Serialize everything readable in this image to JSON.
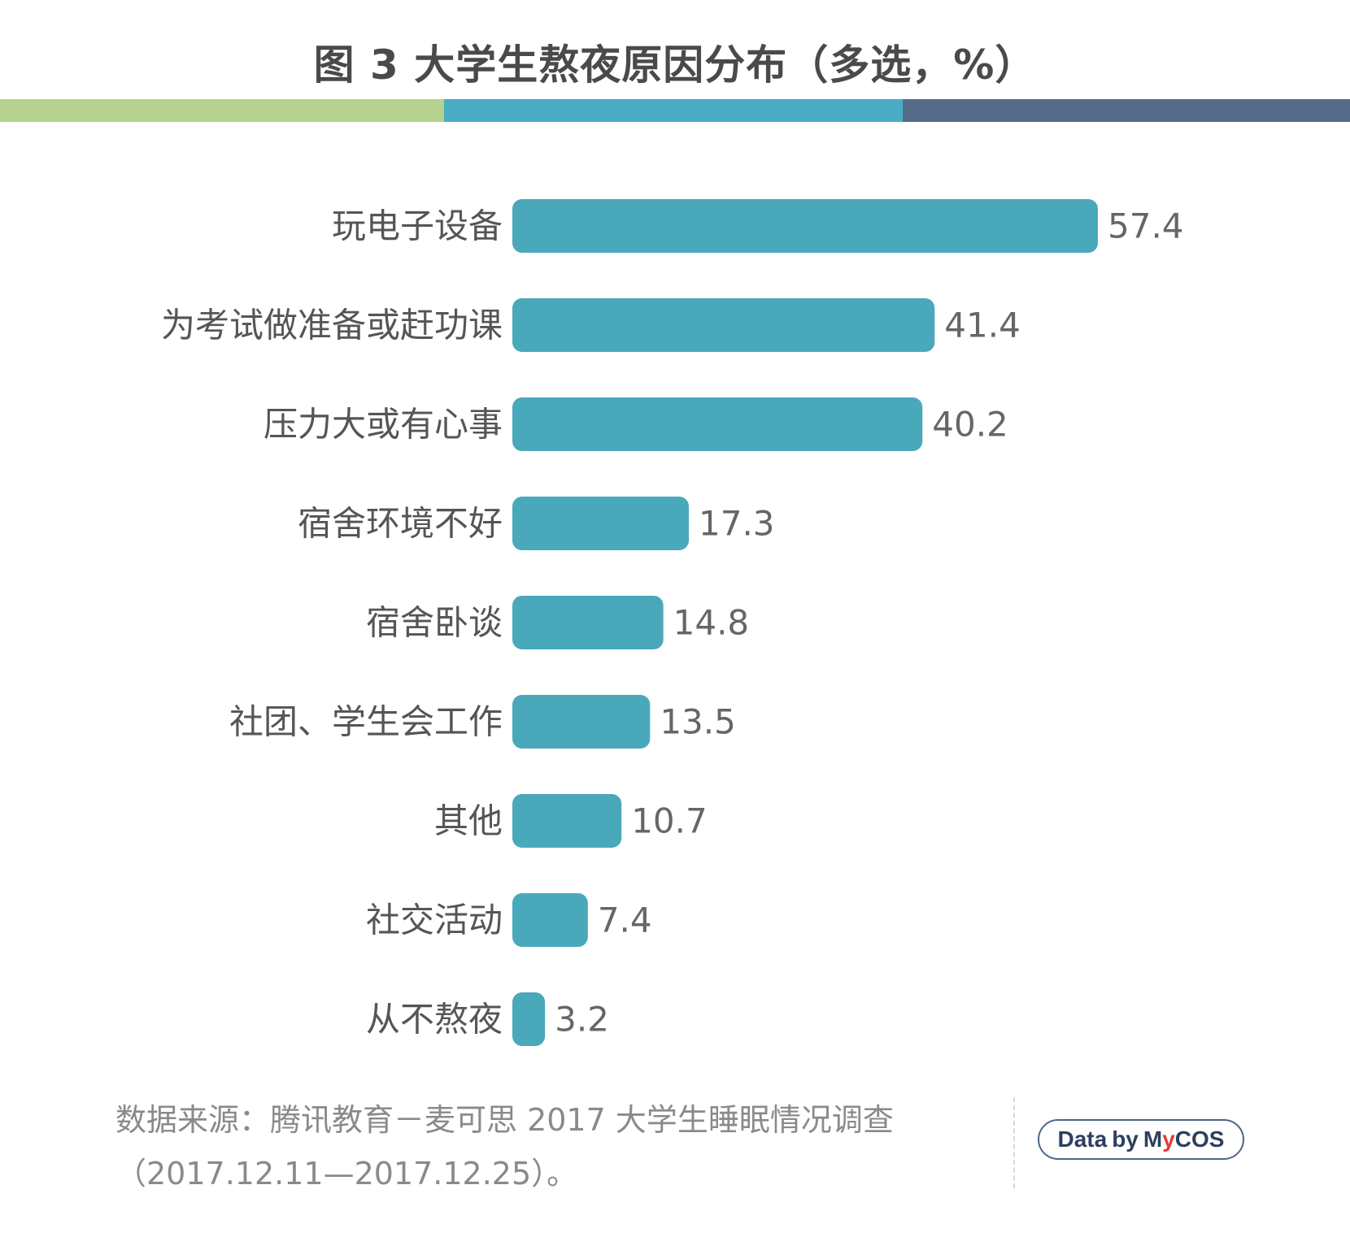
{
  "colors": {
    "bar": "#4aa8bb",
    "bar_label": "#666666",
    "category_label": "#555555",
    "title": "#4a4a4a",
    "divider": [
      "#b4d18e",
      "#4aacc4",
      "#556b87"
    ]
  },
  "chart_data": {
    "type": "bar",
    "orientation": "horizontal",
    "title": "图 3  大学生熬夜原因分布（多选，%）",
    "xlabel": "",
    "ylabel": "",
    "unit": "%",
    "xlim": [
      0,
      60
    ],
    "grid": false,
    "legend": "none",
    "categories": [
      "玩电子设备",
      "为考试做准备或赶功课",
      "压力大或有心事",
      "宿舍环境不好",
      "宿舍卧谈",
      "社团、学生会工作",
      "其他",
      "社交活动",
      "从不熬夜"
    ],
    "values": [
      57.4,
      41.4,
      40.2,
      17.3,
      14.8,
      13.5,
      10.7,
      7.4,
      3.2
    ],
    "value_labels": [
      "57.4",
      "41.4",
      "40.2",
      "17.3",
      "14.8",
      "13.5",
      "10.7",
      "7.4",
      "3.2"
    ]
  },
  "source": {
    "line1": "数据来源：腾讯教育－麦可思 2017 大学生睡眠情况调查",
    "line2": "（2017.12.11—2017.12.25）。"
  },
  "badge": {
    "data": "Data",
    "by": "by",
    "brand_m": "M",
    "brand_y": "y",
    "brand_rest": "COS"
  }
}
